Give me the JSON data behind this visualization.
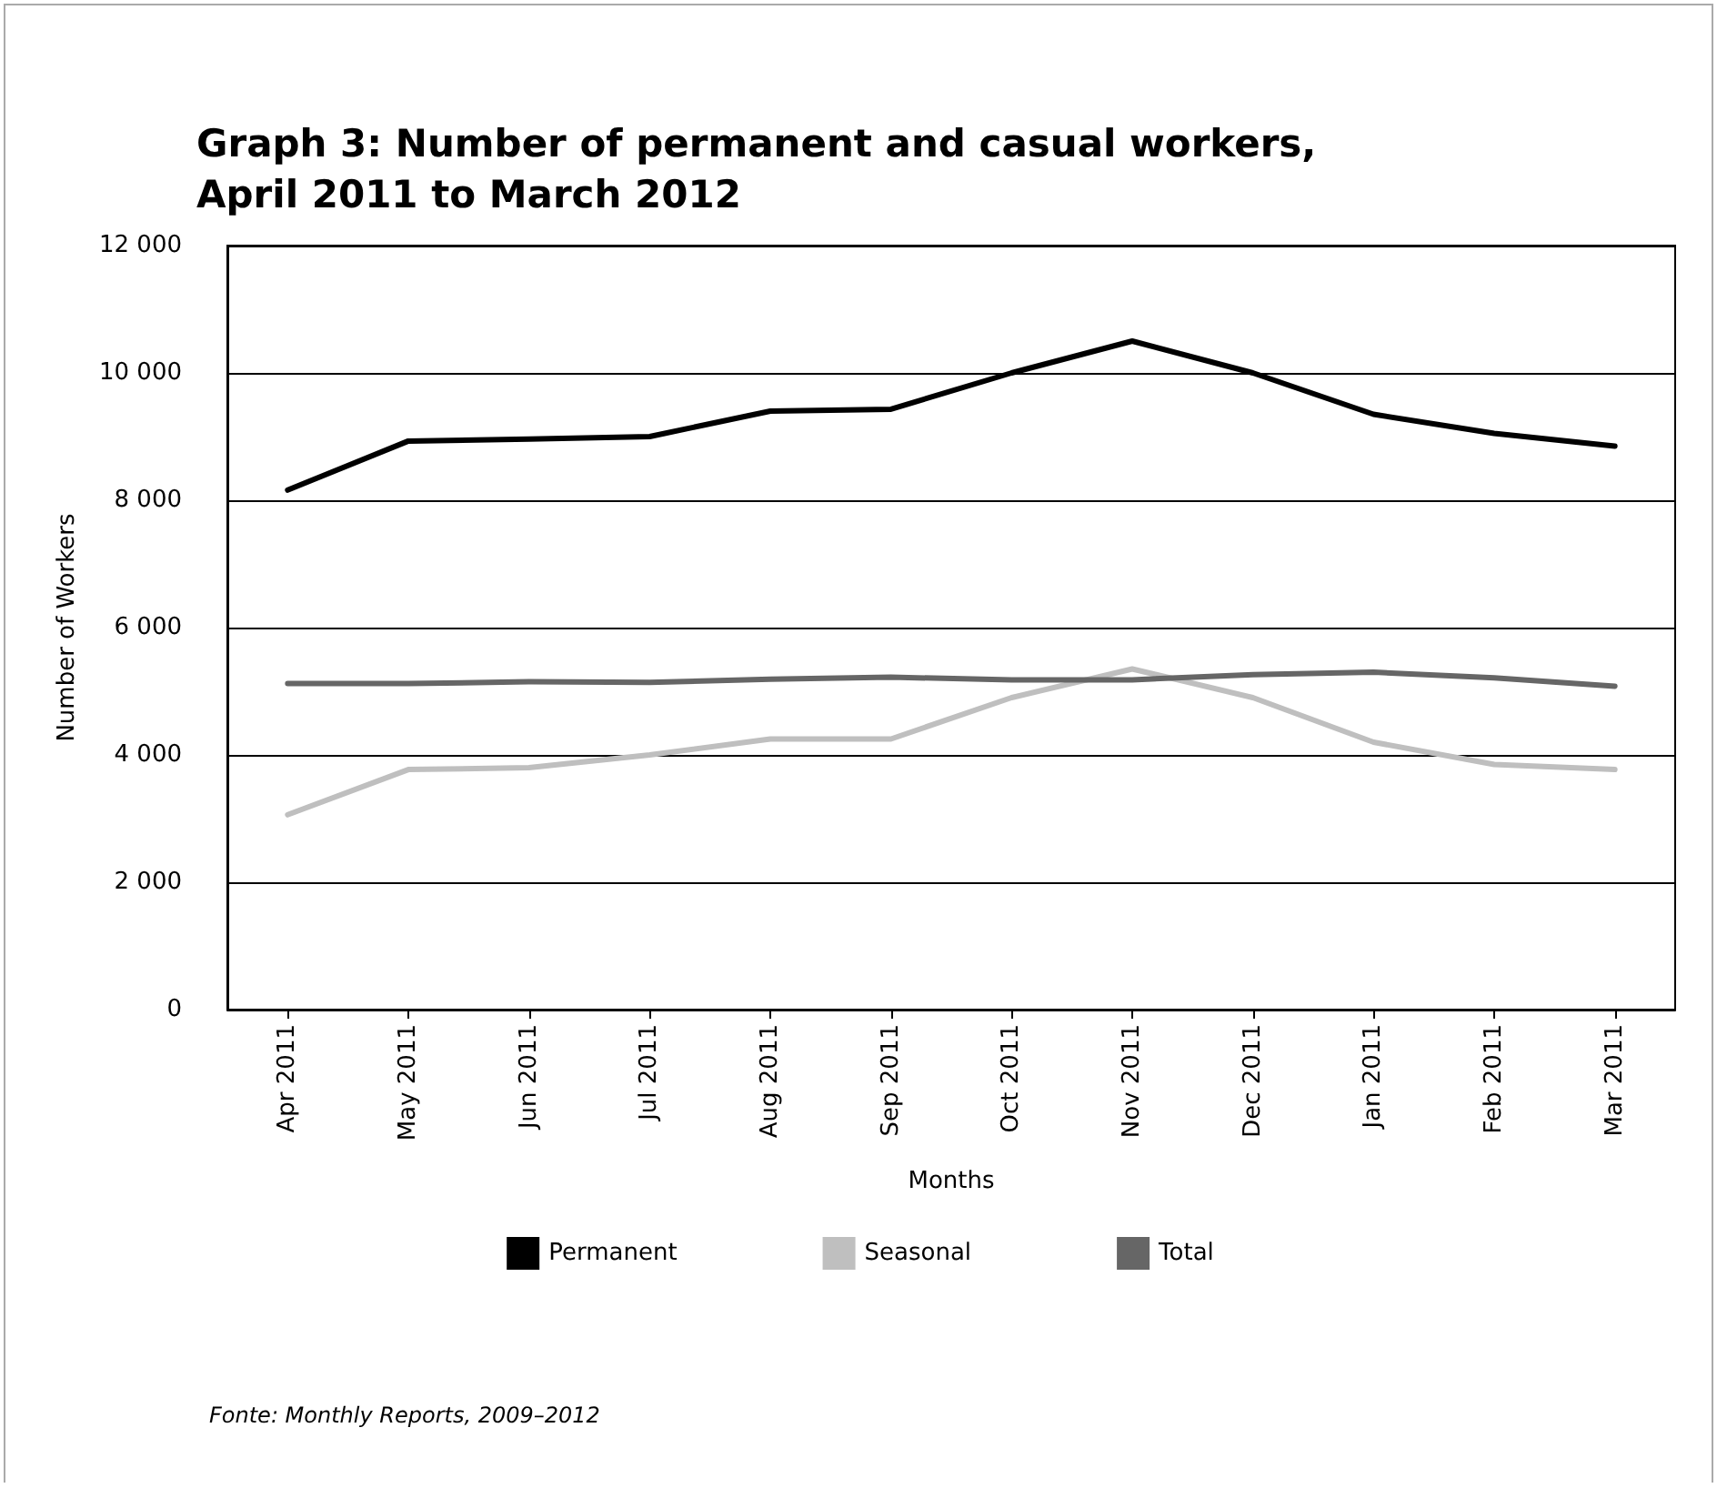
{
  "chart_data": {
    "type": "line",
    "title": "Graph 3: Number of permanent and casual workers,\nApril 2011 to March 2012",
    "xlabel": "Months",
    "ylabel": "Number of Workers",
    "categories": [
      "Apr 2011",
      "May 2011",
      "Jun 2011",
      "Jul 2011",
      "Aug 2011",
      "Sep 2011",
      "Oct 2011",
      "Nov 2011",
      "Dec 2011",
      "Jan 2011",
      "Feb 2011",
      "Mar 2011"
    ],
    "series": [
      {
        "name": "Permanent",
        "color": "#000000",
        "values": [
          8160,
          8930,
          8960,
          9000,
          9400,
          9430,
          10000,
          10500,
          10000,
          9350,
          9050,
          8850
        ]
      },
      {
        "name": "Seasonal",
        "color": "#bfbfbf",
        "values": [
          3060,
          3770,
          3800,
          4000,
          4250,
          4250,
          4900,
          5350,
          4900,
          4200,
          3850,
          3770
        ]
      },
      {
        "name": "Total",
        "color": "#666666",
        "values": [
          5120,
          5120,
          5150,
          5140,
          5190,
          5220,
          5180,
          5180,
          5260,
          5300,
          5210,
          5080
        ]
      }
    ],
    "ylim": [
      0,
      12000
    ],
    "yticks": [
      {
        "value": 0,
        "label": "0"
      },
      {
        "value": 2000,
        "label": "2 000"
      },
      {
        "value": 4000,
        "label": "4 000"
      },
      {
        "value": 6000,
        "label": "6 000"
      },
      {
        "value": 8000,
        "label": "8 000"
      },
      {
        "value": 10000,
        "label": "10 000"
      },
      {
        "value": 12000,
        "label": "12 000"
      }
    ],
    "grid": "y",
    "legend": "bottom",
    "marker": "none",
    "line_style": "solid",
    "annotations": [
      "Fonte: Monthly Reports, 2009–2012"
    ]
  }
}
